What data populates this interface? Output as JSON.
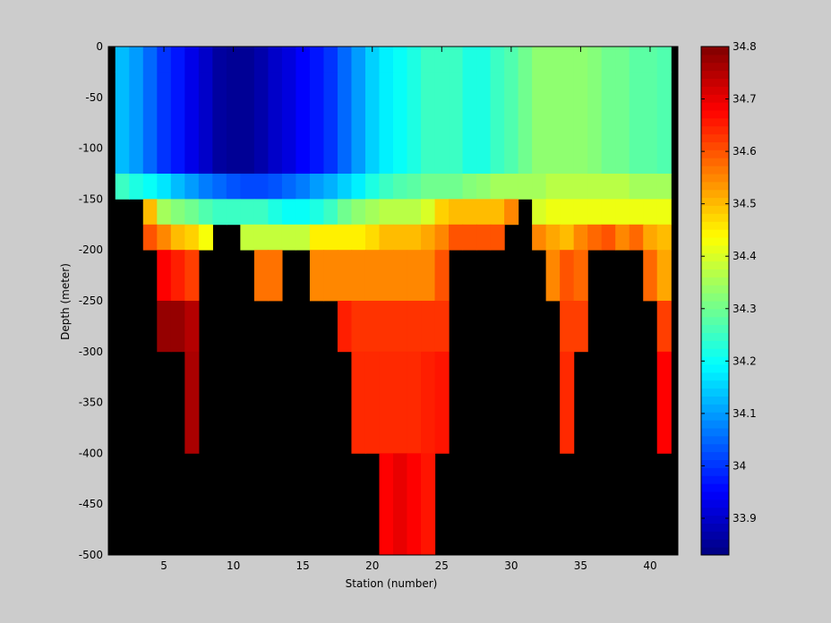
{
  "chart_data": {
    "type": "heatmap",
    "xlabel": "Station (number)",
    "ylabel": "Depth (meter)",
    "xlim": [
      1,
      42
    ],
    "ylim": [
      -500,
      0
    ],
    "xticks": [
      5,
      10,
      15,
      20,
      25,
      30,
      35,
      40
    ],
    "yticks": [
      0,
      -50,
      -100,
      -150,
      -200,
      -250,
      -300,
      -350,
      -400,
      -450,
      -500
    ],
    "colorbar": {
      "range": [
        33.83,
        34.8
      ],
      "ticks": [
        33.9,
        34,
        34.1,
        34.2,
        34.3,
        34.4,
        34.5,
        34.6,
        34.7,
        34.8
      ]
    },
    "depth_bins": [
      "0 to -25",
      "-25 to -125",
      "-125 to -150",
      "-150 to -175",
      "-175 to -200",
      "-200 to -250",
      "-250 to -300",
      "-300 to -400",
      "-400 to -500"
    ],
    "layers": [
      {
        "depth": [
          0,
          -25
        ],
        "values": [
          null,
          34.13,
          34.1,
          34.05,
          34.0,
          33.97,
          33.93,
          33.9,
          33.86,
          33.85,
          33.85,
          33.87,
          33.9,
          33.92,
          33.95,
          33.97,
          34.0,
          34.05,
          34.1,
          34.15,
          34.18,
          34.2,
          34.22,
          34.25,
          34.25,
          34.25,
          34.22,
          34.22,
          34.25,
          34.27,
          34.3,
          34.33,
          34.33,
          34.33,
          34.33,
          34.32,
          34.3,
          34.3,
          34.28,
          34.28,
          34.27
        ]
      },
      {
        "depth": [
          -25,
          -125
        ],
        "values": [
          null,
          34.13,
          34.1,
          34.05,
          34.0,
          33.97,
          33.93,
          33.9,
          33.86,
          33.85,
          33.85,
          33.87,
          33.9,
          33.92,
          33.95,
          33.97,
          34.0,
          34.05,
          34.1,
          34.15,
          34.18,
          34.2,
          34.22,
          34.25,
          34.25,
          34.25,
          34.22,
          34.22,
          34.25,
          34.27,
          34.3,
          34.33,
          34.33,
          34.33,
          34.33,
          34.32,
          34.3,
          34.3,
          34.28,
          34.28,
          34.27
        ]
      },
      {
        "depth": [
          -125,
          -150
        ],
        "values": [
          null,
          34.25,
          34.22,
          34.2,
          34.17,
          34.13,
          34.1,
          34.07,
          34.05,
          34.03,
          34.02,
          34.02,
          34.03,
          34.05,
          34.07,
          34.1,
          34.12,
          34.15,
          34.18,
          34.22,
          34.25,
          34.27,
          34.28,
          34.3,
          34.3,
          34.3,
          34.32,
          34.33,
          34.35,
          34.35,
          34.35,
          34.35,
          34.37,
          34.37,
          34.37,
          34.37,
          34.37,
          34.37,
          34.35,
          34.35,
          34.35
        ]
      },
      {
        "depth": [
          -150,
          -175
        ],
        "values": [
          null,
          null,
          null,
          34.5,
          34.35,
          34.32,
          34.3,
          34.27,
          34.25,
          34.25,
          34.25,
          34.25,
          34.22,
          34.2,
          34.2,
          34.22,
          34.25,
          34.3,
          34.33,
          34.35,
          34.37,
          34.37,
          34.37,
          34.4,
          34.48,
          34.5,
          34.5,
          34.5,
          34.5,
          34.55,
          null,
          34.4,
          34.42,
          34.42,
          34.42,
          34.42,
          34.42,
          34.42,
          34.42,
          34.42,
          34.42
        ]
      },
      {
        "depth": [
          -175,
          -200
        ],
        "values": [
          null,
          null,
          null,
          34.6,
          34.55,
          34.5,
          34.48,
          34.43,
          null,
          null,
          34.38,
          34.38,
          34.38,
          34.38,
          34.38,
          34.45,
          34.45,
          34.45,
          34.45,
          34.47,
          34.5,
          34.5,
          34.5,
          34.52,
          34.55,
          34.6,
          34.6,
          34.6,
          34.6,
          null,
          null,
          34.55,
          34.52,
          34.5,
          34.55,
          34.58,
          34.6,
          34.55,
          34.58,
          34.52,
          34.5
        ]
      },
      {
        "depth": [
          -200,
          -250
        ],
        "values": [
          null,
          null,
          null,
          null,
          34.68,
          34.65,
          34.62,
          null,
          null,
          null,
          null,
          34.57,
          34.57,
          null,
          null,
          34.55,
          34.55,
          34.55,
          34.55,
          34.55,
          34.55,
          34.55,
          34.55,
          34.55,
          34.6,
          null,
          null,
          null,
          null,
          null,
          null,
          null,
          34.55,
          34.6,
          34.58,
          null,
          null,
          null,
          null,
          34.58,
          34.52
        ]
      },
      {
        "depth": [
          -250,
          -300
        ],
        "values": [
          null,
          null,
          null,
          null,
          34.78,
          34.78,
          34.75,
          null,
          null,
          null,
          null,
          null,
          null,
          null,
          null,
          null,
          null,
          34.65,
          34.63,
          34.63,
          34.63,
          34.63,
          34.63,
          34.63,
          34.63,
          null,
          null,
          null,
          null,
          null,
          null,
          null,
          null,
          34.62,
          34.62,
          null,
          null,
          null,
          null,
          null,
          34.62
        ]
      },
      {
        "depth": [
          -300,
          -400
        ],
        "values": [
          null,
          null,
          null,
          null,
          null,
          null,
          34.76,
          null,
          null,
          null,
          null,
          null,
          null,
          null,
          null,
          null,
          null,
          null,
          34.64,
          34.64,
          34.64,
          34.64,
          34.64,
          34.65,
          34.66,
          null,
          null,
          null,
          null,
          null,
          null,
          null,
          null,
          34.64,
          null,
          null,
          null,
          null,
          null,
          null,
          34.68
        ]
      },
      {
        "depth": [
          -400,
          -500
        ],
        "values": [
          null,
          null,
          null,
          null,
          null,
          null,
          null,
          null,
          null,
          null,
          null,
          null,
          null,
          null,
          null,
          null,
          null,
          null,
          null,
          null,
          34.68,
          34.7,
          34.68,
          34.66,
          null,
          null,
          null,
          null,
          null,
          null,
          null,
          null,
          null,
          null,
          null,
          null,
          null,
          null,
          null,
          null,
          null
        ]
      }
    ]
  }
}
